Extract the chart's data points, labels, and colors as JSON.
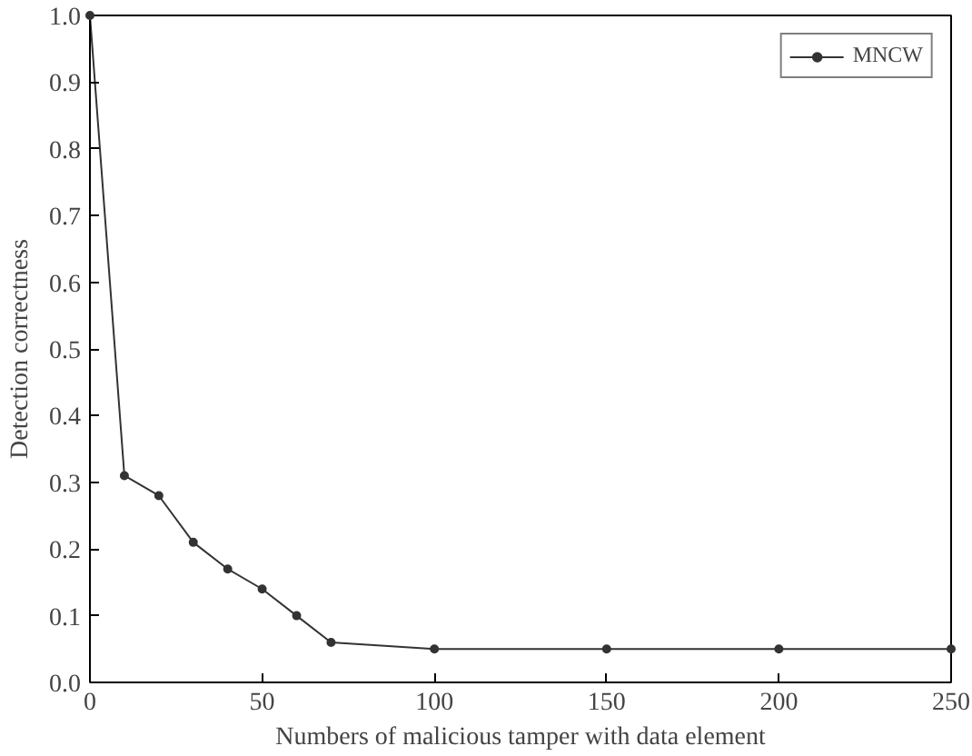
{
  "chart_data": {
    "type": "line",
    "xlabel": "Numbers of malicious tamper with data element",
    "ylabel": "Detection correctness",
    "x": [
      0,
      10,
      20,
      30,
      40,
      50,
      60,
      70,
      100,
      150,
      200,
      250
    ],
    "series": [
      {
        "name": "MNCW",
        "color": "#333333",
        "values": [
          1.0,
          0.31,
          0.28,
          0.21,
          0.17,
          0.14,
          0.1,
          0.06,
          0.05,
          0.05,
          0.05,
          0.05
        ]
      }
    ],
    "xlim": [
      0,
      250
    ],
    "ylim": [
      0,
      1
    ],
    "xticks": [
      0,
      50,
      100,
      150,
      200,
      250
    ],
    "yticks": [
      {
        "value": 0,
        "label": "0.0"
      },
      0.1,
      0.2,
      0.3,
      0.4,
      0.5,
      0.6,
      0.7,
      0.8,
      0.9,
      {
        "value": 1,
        "label": "1.0"
      }
    ],
    "legend": "top right",
    "marker": "circle",
    "line_style": "solid"
  }
}
